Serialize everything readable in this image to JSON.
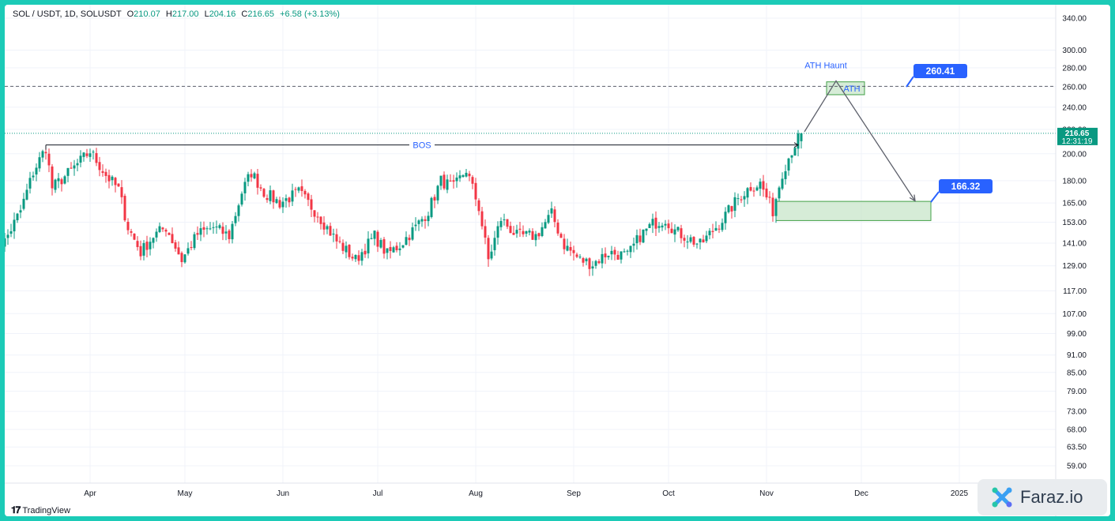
{
  "header": {
    "symbol": "SOL / USDT, 1D, SOLUSDT",
    "open_label": "O",
    "open": "210.07",
    "high_label": "H",
    "high": "217.00",
    "low_label": "L",
    "low": "204.16",
    "close_label": "C",
    "close": "216.65",
    "change": "+6.58 (+3.13%)"
  },
  "watermark": {
    "brand": "TradingView"
  },
  "badge": {
    "brand": "Faraz.io"
  },
  "colors": {
    "up": "#089981",
    "down": "#f23645",
    "accent": "#2962ff",
    "zone_fill": "#c8e6c9",
    "zone_border": "#43a047",
    "frame": "#1ccbb7"
  },
  "chart_data": {
    "type": "candlestick",
    "symbol": "SOLUSDT",
    "interval": "1D",
    "y_scale": "log",
    "ylim": [
      55,
      360
    ],
    "y_ticks": [
      "340.00",
      "300.00",
      "280.00",
      "260.00",
      "240.00",
      "220.00",
      "200.00",
      "180.00",
      "165.00",
      "153.00",
      "141.00",
      "129.00",
      "117.00",
      "107.00",
      "99.00",
      "91.00",
      "85.00",
      "79.00",
      "73.00",
      "68.00",
      "63.50",
      "59.00"
    ],
    "x_ticks": [
      "Apr",
      "May",
      "Jun",
      "Jul",
      "Aug",
      "Sep",
      "Oct",
      "Nov",
      "Dec",
      "2025"
    ],
    "last_price": {
      "value": "216.65",
      "timer": "12:31:19"
    },
    "price_path": [
      {
        "date": "2024-03-01",
        "price": 138
      },
      {
        "date": "2024-03-05",
        "price": 142
      },
      {
        "date": "2024-03-10",
        "price": 160
      },
      {
        "date": "2024-03-14",
        "price": 186
      },
      {
        "date": "2024-03-18",
        "price": 205
      },
      {
        "date": "2024-03-20",
        "price": 175
      },
      {
        "date": "2024-03-24",
        "price": 183
      },
      {
        "date": "2024-03-28",
        "price": 192
      },
      {
        "date": "2024-04-01",
        "price": 202
      },
      {
        "date": "2024-04-06",
        "price": 184
      },
      {
        "date": "2024-04-10",
        "price": 174
      },
      {
        "date": "2024-04-13",
        "price": 150
      },
      {
        "date": "2024-04-17",
        "price": 136
      },
      {
        "date": "2024-04-21",
        "price": 145
      },
      {
        "date": "2024-04-25",
        "price": 150
      },
      {
        "date": "2024-04-30",
        "price": 132
      },
      {
        "date": "2024-05-05",
        "price": 146
      },
      {
        "date": "2024-05-10",
        "price": 150
      },
      {
        "date": "2024-05-15",
        "price": 145
      },
      {
        "date": "2024-05-19",
        "price": 172
      },
      {
        "date": "2024-05-22",
        "price": 186
      },
      {
        "date": "2024-05-26",
        "price": 172
      },
      {
        "date": "2024-05-31",
        "price": 165
      },
      {
        "date": "2024-06-06",
        "price": 172
      },
      {
        "date": "2024-06-12",
        "price": 158
      },
      {
        "date": "2024-06-18",
        "price": 142
      },
      {
        "date": "2024-06-24",
        "price": 132
      },
      {
        "date": "2024-06-30",
        "price": 145
      },
      {
        "date": "2024-07-04",
        "price": 135
      },
      {
        "date": "2024-07-08",
        "price": 140
      },
      {
        "date": "2024-07-13",
        "price": 150
      },
      {
        "date": "2024-07-17",
        "price": 160
      },
      {
        "date": "2024-07-21",
        "price": 180
      },
      {
        "date": "2024-07-25",
        "price": 175
      },
      {
        "date": "2024-07-29",
        "price": 188
      },
      {
        "date": "2024-08-02",
        "price": 162
      },
      {
        "date": "2024-08-05",
        "price": 132
      },
      {
        "date": "2024-08-09",
        "price": 155
      },
      {
        "date": "2024-08-14",
        "price": 145
      },
      {
        "date": "2024-08-20",
        "price": 145
      },
      {
        "date": "2024-08-25",
        "price": 158
      },
      {
        "date": "2024-08-29",
        "price": 140
      },
      {
        "date": "2024-09-03",
        "price": 132
      },
      {
        "date": "2024-09-07",
        "price": 130
      },
      {
        "date": "2024-09-12",
        "price": 136
      },
      {
        "date": "2024-09-18",
        "price": 134
      },
      {
        "date": "2024-09-22",
        "price": 145
      },
      {
        "date": "2024-09-26",
        "price": 152
      },
      {
        "date": "2024-09-30",
        "price": 155
      },
      {
        "date": "2024-10-03",
        "price": 148
      },
      {
        "date": "2024-10-07",
        "price": 144
      },
      {
        "date": "2024-10-11",
        "price": 140
      },
      {
        "date": "2024-10-15",
        "price": 148
      },
      {
        "date": "2024-10-19",
        "price": 157
      },
      {
        "date": "2024-10-23",
        "price": 168
      },
      {
        "date": "2024-10-27",
        "price": 176
      },
      {
        "date": "2024-10-30",
        "price": 178
      },
      {
        "date": "2024-11-03",
        "price": 160
      },
      {
        "date": "2024-11-06",
        "price": 186
      },
      {
        "date": "2024-11-09",
        "price": 203
      },
      {
        "date": "2024-11-12",
        "price": 216.65
      }
    ],
    "annotations": {
      "bos": {
        "label": "BOS",
        "level": 207,
        "from": "2024-03-18",
        "to": "2024-11-11"
      },
      "ath_line": {
        "level": 260.41
      },
      "ath_zone": {
        "label": "ATH",
        "top": 265,
        "bottom": 252,
        "from": "2024-11-20",
        "to": "2024-12-02"
      },
      "ath_haunt": {
        "label": "ATH Haunt"
      },
      "projection": [
        {
          "date": "2024-11-13",
          "price": 218
        },
        {
          "date": "2024-11-23",
          "price": 266
        },
        {
          "date": "2024-12-18",
          "price": 166.32
        }
      ],
      "demand_zone": {
        "top": 166,
        "bottom": 154,
        "from": "2024-11-04",
        "to": "2024-12-23"
      },
      "target_high": {
        "value": "260.41"
      },
      "target_low": {
        "value": "166.32"
      }
    }
  }
}
